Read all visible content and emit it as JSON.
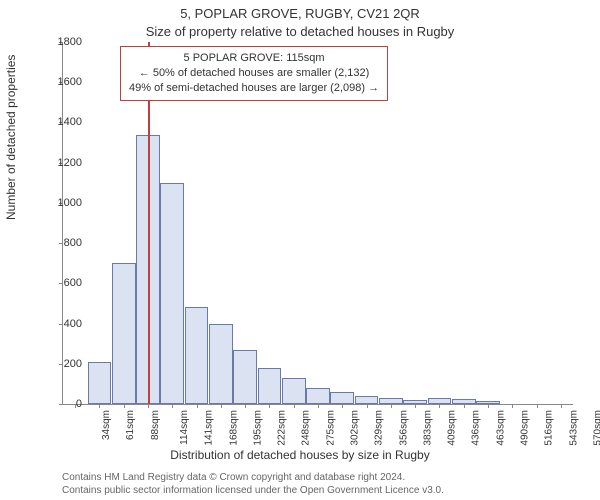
{
  "chart": {
    "type": "histogram",
    "title_main": "5, POPLAR GROVE, RUGBY, CV21 2QR",
    "title_sub": "Size of property relative to detached houses in Rugby",
    "ylabel": "Number of detached properties",
    "xlabel": "Distribution of detached houses by size in Rugby",
    "ylim": [
      0,
      1800
    ],
    "ytick_step": 200,
    "yticks": [
      0,
      200,
      400,
      600,
      800,
      1000,
      1200,
      1400,
      1600,
      1800
    ],
    "xticks": [
      "34sqm",
      "61sqm",
      "88sqm",
      "114sqm",
      "141sqm",
      "168sqm",
      "195sqm",
      "222sqm",
      "248sqm",
      "275sqm",
      "302sqm",
      "329sqm",
      "356sqm",
      "383sqm",
      "409sqm",
      "436sqm",
      "463sqm",
      "490sqm",
      "516sqm",
      "543sqm",
      "570sqm"
    ],
    "values": [
      0,
      210,
      700,
      1340,
      1100,
      480,
      400,
      270,
      180,
      130,
      80,
      60,
      40,
      30,
      20,
      30,
      25,
      15,
      0,
      0,
      0
    ],
    "bar_fill": "#dbe2f1",
    "bar_stroke": "#6a7aa8",
    "background_color": "#ffffff",
    "axis_color": "#888888",
    "reference_line": {
      "position_index": 3,
      "color": "#c04040"
    },
    "annotation": {
      "line1": "5 POPLAR GROVE: 115sqm",
      "line2": "← 50% of detached houses are smaller (2,132)",
      "line3": "49% of semi-detached houses are larger (2,098) →",
      "border_color": "#c04040"
    },
    "footer_line1": "Contains HM Land Registry data © Crown copyright and database right 2024.",
    "footer_line2": "Contains public sector information licensed under the Open Government Licence v3.0."
  }
}
